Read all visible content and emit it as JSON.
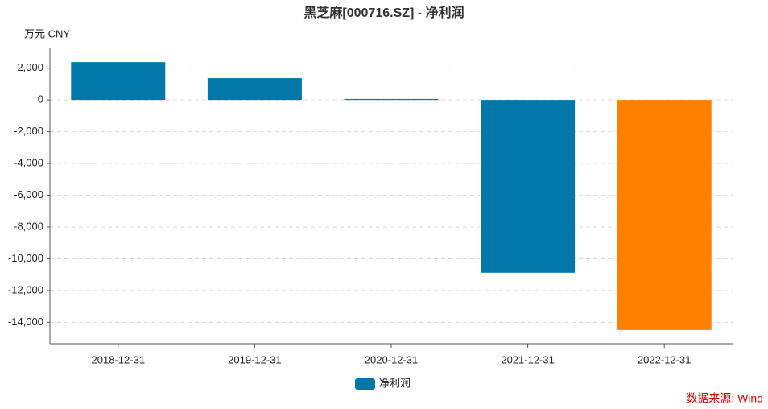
{
  "chart_data": {
    "type": "bar",
    "title": "黑芝麻[000716.SZ] - 净利润",
    "y_label": "万元  CNY",
    "categories": [
      "2018-12-31",
      "2019-12-31",
      "2020-12-31",
      "2021-12-31",
      "2022-12-31"
    ],
    "series": [
      {
        "name": "净利润",
        "color": "#0077a8",
        "values": [
          2380,
          1370,
          60,
          -10880,
          -14480
        ]
      }
    ],
    "bar_colors": [
      "#0077a8",
      "#0077a8",
      "#0077a8",
      "#0077a8",
      "#ff7f00"
    ],
    "ylim": [
      -15350,
      3250
    ],
    "yticks": [
      {
        "value": 2000,
        "label": "2,000"
      },
      0,
      {
        "value": -2000,
        "label": "-2,000"
      },
      {
        "value": -4000,
        "label": "-4,000"
      },
      {
        "value": -6000,
        "label": "-6,000"
      },
      {
        "value": -8000,
        "label": "-8,000"
      },
      {
        "value": -10000,
        "label": "-10,000"
      },
      {
        "value": -12000,
        "label": "-12,000"
      },
      {
        "value": -14000,
        "label": "-14,000"
      }
    ],
    "grid": true,
    "legend": "bottom",
    "source": "数据来源: Wind"
  }
}
